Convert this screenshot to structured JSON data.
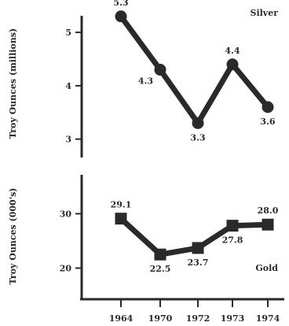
{
  "chart_data": [
    {
      "type": "line",
      "panel_label": "Silver",
      "ylabel": "Troy Ounces (millions)",
      "ylim": [
        2.7,
        5.4
      ],
      "yticks": [
        3,
        4,
        5
      ],
      "categories": [
        "1964",
        "1970",
        "1972",
        "1973",
        "1974"
      ],
      "values": [
        5.3,
        4.3,
        3.3,
        4.4,
        3.6
      ],
      "value_labels": [
        "5.3",
        "4.3",
        "3.3",
        "4.4",
        "3.6"
      ],
      "marker": "circle"
    },
    {
      "type": "line",
      "panel_label": "Gold",
      "ylabel": "Troy Ounces (000's)",
      "ylim": [
        15,
        36
      ],
      "yticks": [
        20,
        30
      ],
      "categories": [
        "1964",
        "1970",
        "1972",
        "1973",
        "1974"
      ],
      "values": [
        29.1,
        22.5,
        23.7,
        27.8,
        28.0
      ],
      "value_labels": [
        "29.1",
        "22.5",
        "23.7",
        "27.8",
        "28.0"
      ],
      "marker": "square"
    }
  ],
  "xaxis": {
    "tick_labels": [
      "1964",
      "1970",
      "1972",
      "1973",
      "1974"
    ]
  }
}
